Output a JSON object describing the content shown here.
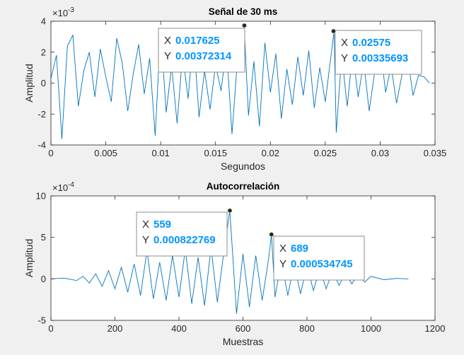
{
  "chart_data": [
    {
      "type": "line",
      "title": "Señal de 30 ms",
      "xlabel": "Segundos",
      "ylabel": "Amplitud",
      "exponent_label": "×10",
      "exponent_power": "-3",
      "xlim": [
        0,
        0.035
      ],
      "ylim": [
        -4,
        4
      ],
      "x_ticks": [
        0,
        0.005,
        0.01,
        0.015,
        0.02,
        0.025,
        0.03,
        0.035
      ],
      "x_tick_labels": [
        "0",
        "0.005",
        "0.01",
        "0.015",
        "0.02",
        "0.025",
        "0.03",
        "0.035"
      ],
      "y_ticks": [
        -4,
        -2,
        0,
        2,
        4
      ],
      "y_tick_labels": [
        "-4",
        "-2",
        "0",
        "2",
        "4"
      ],
      "grid": false,
      "line_color": "#0072bd",
      "series": [
        {
          "x": [
            0,
            0.0005,
            0.001,
            0.0015,
            0.002,
            0.0025,
            0.003,
            0.0035,
            0.004,
            0.0045,
            0.005,
            0.0055,
            0.006,
            0.0065,
            0.007,
            0.0075,
            0.008,
            0.0085,
            0.009,
            0.0095,
            0.01,
            0.0105,
            0.011,
            0.0115,
            0.012,
            0.0125,
            0.013,
            0.0135,
            0.014,
            0.0145,
            0.015,
            0.0155,
            0.016,
            0.0165,
            0.017,
            0.0176,
            0.018,
            0.0185,
            0.019,
            0.0195,
            0.02,
            0.0205,
            0.021,
            0.0215,
            0.022,
            0.0225,
            0.023,
            0.0235,
            0.024,
            0.0245,
            0.025,
            0.0258,
            0.026,
            0.0265,
            0.027,
            0.0275,
            0.028,
            0.0285,
            0.029,
            0.0295,
            0.03,
            0.0305,
            0.031,
            0.0315,
            0.032,
            0.0325,
            0.033,
            0.0335,
            0.034,
            0.0345
          ],
          "values": [
            0.3,
            1.8,
            -3.6,
            2.4,
            3.1,
            -1.5,
            0.8,
            2.0,
            -0.9,
            2.2,
            0.4,
            -1.2,
            2.9,
            1.3,
            -1.8,
            0.6,
            2.5,
            -0.7,
            1.6,
            -3.4,
            3.5,
            -1.9,
            1.1,
            -2.6,
            1.9,
            -1.0,
            3.0,
            -2.2,
            0.8,
            -1.7,
            1.2,
            -0.5,
            2.3,
            -3.3,
            1.5,
            3.72,
            -2.1,
            1.4,
            -2.8,
            2.6,
            -0.6,
            1.9,
            -2.3,
            0.9,
            -1.4,
            1.7,
            -0.8,
            2.1,
            -1.6,
            1.0,
            -1.2,
            3.36,
            -3.2,
            1.8,
            -1.5,
            2.0,
            -0.9,
            1.4,
            -1.8,
            0.7,
            2.4,
            -0.6,
            1.1,
            -1.3,
            0.6,
            1.7,
            -0.8,
            0.5,
            0.4,
            0
          ]
        }
      ],
      "datatips": [
        {
          "x_label": "X",
          "y_label": "Y",
          "x_value": "0.017625",
          "y_value": "0.00372314",
          "x": 0.017625,
          "y": 3.72314
        },
        {
          "x_label": "X",
          "y_label": "Y",
          "x_value": "0.02575",
          "y_value": "0.00335693",
          "x": 0.02575,
          "y": 3.35693
        }
      ]
    },
    {
      "type": "line",
      "title": "Autocorrelación",
      "xlabel": "Muestras",
      "ylabel": "Amplitud",
      "exponent_label": "×10",
      "exponent_power": "-4",
      "xlim": [
        0,
        1200
      ],
      "ylim": [
        -5,
        10
      ],
      "x_ticks": [
        0,
        200,
        400,
        600,
        800,
        1000,
        1200
      ],
      "x_tick_labels": [
        "0",
        "200",
        "400",
        "600",
        "800",
        "1000",
        "1200"
      ],
      "y_ticks": [
        -5,
        0,
        5,
        10
      ],
      "y_tick_labels": [
        "-5",
        "0",
        "5",
        "10"
      ],
      "grid": false,
      "line_color": "#0072bd",
      "series": [
        {
          "x": [
            0,
            40,
            80,
            100,
            120,
            140,
            160,
            180,
            200,
            220,
            240,
            260,
            280,
            300,
            320,
            340,
            360,
            380,
            400,
            420,
            440,
            460,
            480,
            500,
            520,
            540,
            559,
            580,
            600,
            620,
            640,
            660,
            680,
            689,
            700,
            720,
            740,
            760,
            780,
            800,
            820,
            840,
            860,
            880,
            900,
            920,
            940,
            960,
            980,
            1000,
            1040,
            1080,
            1117
          ],
          "values": [
            0,
            0.1,
            -0.2,
            0.3,
            -0.5,
            0.6,
            -0.9,
            1.0,
            -1.2,
            1.4,
            -1.6,
            1.8,
            -2.0,
            3.4,
            -2.4,
            2.0,
            -2.6,
            2.8,
            -2.2,
            3.6,
            -3.0,
            2.6,
            -3.2,
            3.8,
            -2.8,
            3.2,
            8.23,
            -4.2,
            3.0,
            -3.4,
            2.8,
            -2.6,
            2.4,
            5.35,
            -2.2,
            2.2,
            -2.0,
            1.8,
            -1.8,
            1.6,
            -1.4,
            1.2,
            -1.2,
            1.0,
            -0.8,
            0.7,
            -0.6,
            0.5,
            -0.4,
            0.3,
            -0.1,
            0.05,
            0
          ]
        }
      ],
      "datatips": [
        {
          "x_label": "X",
          "y_label": "Y",
          "x_value": "559",
          "y_value": "0.000822769",
          "x": 559,
          "y": 8.22769
        },
        {
          "x_label": "X",
          "y_label": "Y",
          "x_value": "689",
          "y_value": "0.000534745",
          "x": 689,
          "y": 5.34745
        }
      ]
    }
  ],
  "colors": {
    "background": "#f0f0f0",
    "axes_background": "#ffffff",
    "axes_color": "#262626",
    "datatip_value": "#0095ff",
    "datatip_text": "#262626",
    "datatip_border": "#8c8c8c",
    "datatip_background": "#ffffff"
  }
}
